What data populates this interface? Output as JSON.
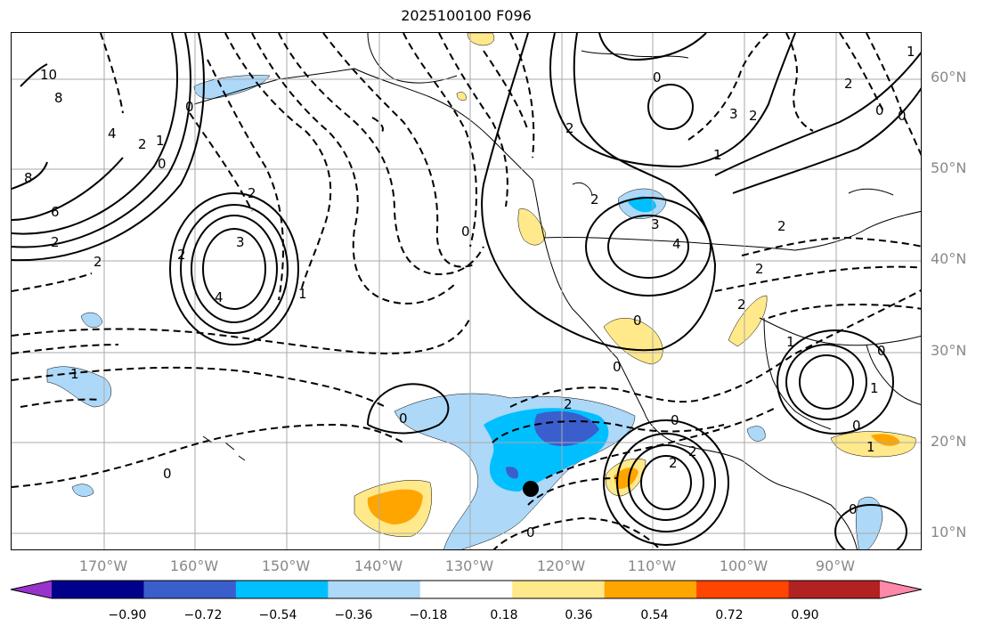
{
  "title": "2025100100 F096",
  "latitude_labels": [
    "60°N",
    "50°N",
    "40°N",
    "30°N",
    "20°N",
    "10°N"
  ],
  "longitude_labels": [
    "170°W",
    "160°W",
    "150°W",
    "140°W",
    "130°W",
    "120°W",
    "110°W",
    "100°W",
    "90°W"
  ],
  "contour_labels": [
    "10",
    "8",
    "0",
    "2",
    "1",
    "4",
    "8",
    "6",
    "2",
    "2",
    "3",
    "4",
    "2",
    "1",
    "2",
    "0",
    "0",
    "2",
    "3",
    "4",
    "2",
    "1",
    "3",
    "2",
    "0",
    "0",
    "0",
    "1",
    "0",
    "1",
    "2",
    "0",
    "2",
    "2",
    "0",
    "0",
    "0",
    "0",
    "0",
    "2",
    "1",
    "0",
    "1",
    "2",
    "2",
    "1",
    "0",
    "2"
  ],
  "colorbar": {
    "colors": [
      "#9932cc",
      "#00008b",
      "#3a5fcd",
      "#00bfff",
      "#add8f8",
      "#ffffff",
      "#ffe98a",
      "#ffa500",
      "#ff4500",
      "#b22222",
      "#ff88aa"
    ],
    "tick_labels": [
      "−0.90",
      "−0.72",
      "−0.54",
      "−0.36",
      "−0.18",
      "0.18",
      "0.36",
      "0.54",
      "0.72",
      "0.90"
    ]
  },
  "marker": "filled-circle-marker"
}
